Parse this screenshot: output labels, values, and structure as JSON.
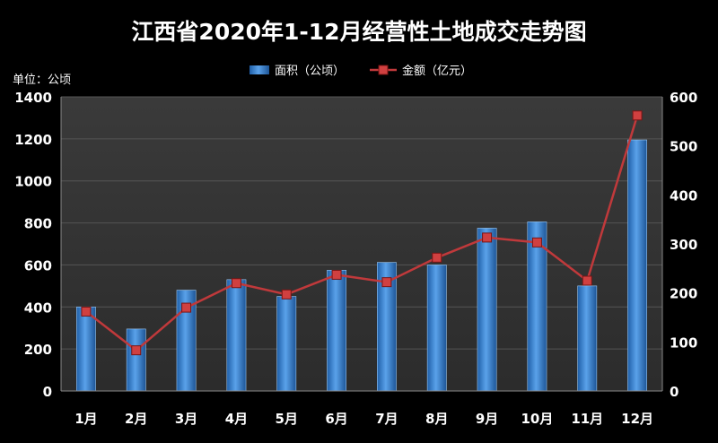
{
  "chart_data": {
    "type": "bar",
    "title": "江西省2020年1-12月经营性土地成交走势图",
    "unit_label": "单位：公顷",
    "categories": [
      "1月",
      "2月",
      "3月",
      "4月",
      "5月",
      "6月",
      "7月",
      "8月",
      "9月",
      "10月",
      "11月",
      "12月"
    ],
    "series": [
      {
        "name": "面积（公顷）",
        "type": "bar",
        "axis": "left",
        "color": "#3f86d4",
        "values": [
          400,
          295,
          480,
          530,
          450,
          575,
          612,
          600,
          775,
          805,
          500,
          1195
        ]
      },
      {
        "name": "金额（亿元）",
        "type": "line",
        "axis": "right",
        "color": "#c0393b",
        "values": [
          162,
          83,
          170,
          220,
          197,
          237,
          222,
          272,
          313,
          303,
          225,
          562
        ]
      }
    ],
    "left_axis": {
      "min": 0,
      "max": 1400,
      "ticks": [
        "0",
        "200",
        "400",
        "600",
        "800",
        "1000",
        "1200",
        "1400"
      ]
    },
    "right_axis": {
      "min": 0,
      "max": 600,
      "ticks": [
        "0",
        "100",
        "200",
        "300",
        "400",
        "500",
        "600"
      ]
    },
    "grid": true,
    "legend_position": "top-center"
  }
}
